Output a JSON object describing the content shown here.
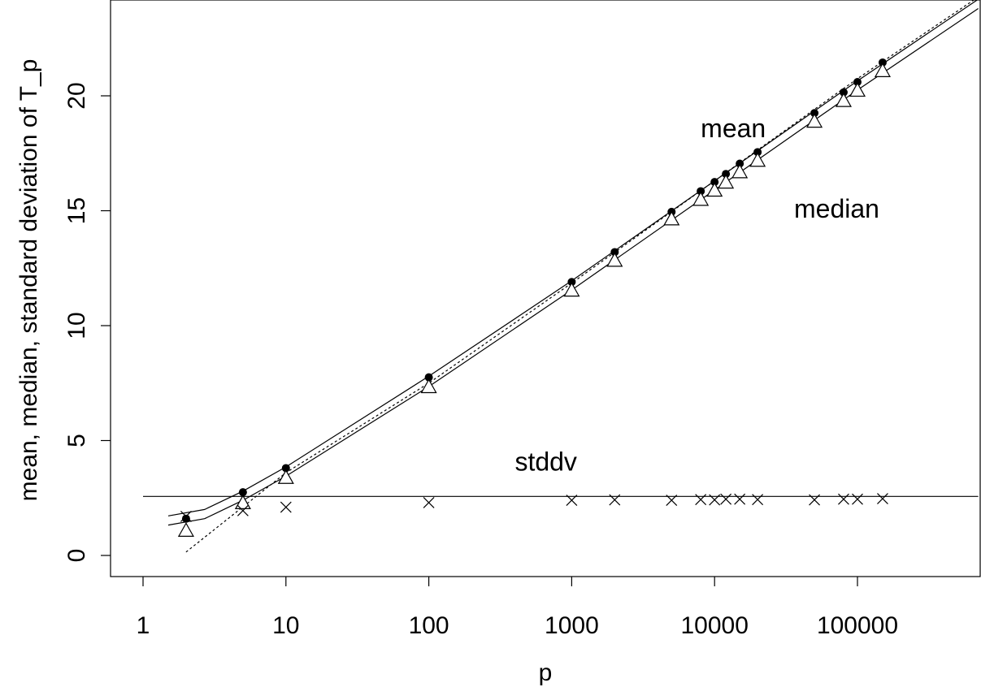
{
  "chart_data": {
    "type": "scatter",
    "x_scale": "log",
    "xlabel": "p",
    "ylabel": "mean, median, standard deviation of T_p",
    "xlim": [
      1,
      700000
    ],
    "ylim": [
      0,
      23
    ],
    "x_ticks": [
      1,
      10,
      100,
      1000,
      10000,
      100000
    ],
    "x_tick_labels": [
      "1",
      "10",
      "100",
      "1000",
      "10000",
      "100000"
    ],
    "y_ticks": [
      0,
      5,
      10,
      15,
      20
    ],
    "y_tick_labels": [
      "0",
      "5",
      "10",
      "15",
      "20"
    ],
    "grid": false,
    "annotations": [
      {
        "text": "mean",
        "x": 8000,
        "y": 18.2
      },
      {
        "text": "median",
        "x": 36000,
        "y": 14.7
      },
      {
        "text": "stddv",
        "x": 400,
        "y": 3.7
      }
    ],
    "series": [
      {
        "marker": "filled-circle",
        "x": [
          2,
          5,
          10,
          100,
          1000,
          2000,
          5000,
          8000,
          10000,
          12000,
          15000,
          20000,
          50000,
          80000,
          100000,
          150000
        ],
        "y": [
          1.6,
          2.75,
          3.8,
          7.75,
          11.9,
          13.2,
          14.95,
          15.85,
          16.25,
          16.6,
          17.05,
          17.55,
          19.25,
          20.15,
          20.6,
          21.45
        ]
      },
      {
        "marker": "open-triangle",
        "x": [
          2,
          5,
          10,
          100,
          1000,
          2000,
          5000,
          8000,
          10000,
          12000,
          15000,
          20000,
          50000,
          80000,
          100000,
          150000
        ],
        "y": [
          1.05,
          2.25,
          3.35,
          7.3,
          11.5,
          12.8,
          14.6,
          15.45,
          15.85,
          16.2,
          16.65,
          17.15,
          18.85,
          19.75,
          20.2,
          21.05
        ]
      },
      {
        "marker": "cross",
        "x": [
          2,
          5,
          10,
          100,
          1000,
          2000,
          5000,
          8000,
          10000,
          12000,
          15000,
          20000,
          50000,
          80000,
          100000,
          150000
        ],
        "y": [
          1.7,
          1.95,
          2.1,
          2.3,
          2.4,
          2.42,
          2.4,
          2.43,
          2.42,
          2.45,
          2.45,
          2.43,
          2.42,
          2.45,
          2.45,
          2.47
        ]
      }
    ],
    "lines": [
      {
        "style": "solid",
        "x": [
          1.5,
          2.7,
          5,
          10,
          100,
          1000,
          10000,
          100000,
          700000
        ],
        "y": [
          1.72,
          2.0,
          2.8,
          3.85,
          7.8,
          11.95,
          16.3,
          20.65,
          24.2
        ]
      },
      {
        "style": "solid",
        "x": [
          1.5,
          2.7,
          5,
          10,
          100,
          1000,
          10000,
          100000,
          700000
        ],
        "y": [
          1.32,
          1.6,
          2.4,
          3.45,
          7.35,
          11.55,
          15.9,
          20.25,
          23.8
        ]
      },
      {
        "style": "dotted",
        "x": [
          2,
          10,
          100,
          1000,
          10000,
          100000,
          700000
        ],
        "y": [
          0.15,
          3.6,
          7.5,
          11.85,
          16.3,
          20.75,
          24.3
        ]
      },
      {
        "style": "solid",
        "x": [
          1,
          700000
        ],
        "y": [
          2.57,
          2.57
        ]
      }
    ]
  }
}
